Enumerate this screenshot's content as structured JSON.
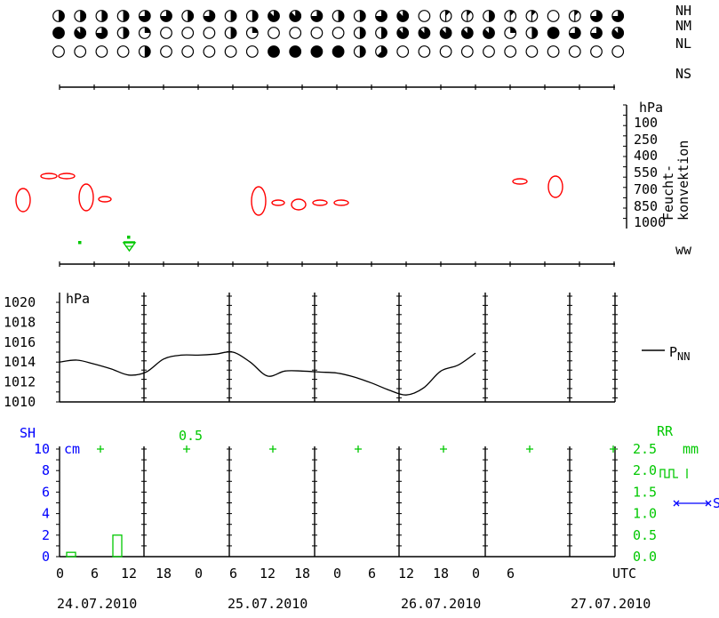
{
  "colors": {
    "black": "#000000",
    "convection": "#ff0000",
    "green": "#00c800",
    "blue": "#0000ff"
  },
  "clouds": {
    "labels": {
      "nh": "NH",
      "nm": "NM",
      "nl": "NL",
      "ns": "NS"
    },
    "rows": [
      [
        4,
        4,
        4,
        4,
        6,
        6,
        4,
        6,
        4,
        4,
        7,
        7,
        6,
        4,
        4,
        6,
        7,
        0,
        1,
        1,
        4,
        1,
        1,
        0,
        1,
        6,
        6
      ],
      [
        8,
        7,
        6,
        4,
        2,
        0,
        0,
        0,
        4,
        2,
        0,
        0,
        0,
        0,
        4,
        4,
        7,
        7,
        7,
        7,
        7,
        2,
        4,
        8,
        6,
        6,
        7
      ],
      [
        0,
        0,
        0,
        0,
        4,
        0,
        0,
        0,
        0,
        0,
        8,
        8,
        8,
        8,
        4,
        5,
        0,
        0,
        0,
        0,
        0,
        0,
        0,
        0,
        0,
        0,
        0
      ]
    ]
  },
  "convection": {
    "labels": {
      "unit": "hPa",
      "ticks": [
        "100",
        "250",
        "400",
        "550",
        "700",
        "850",
        "1000"
      ],
      "title_line1": "Feucht-",
      "title_line2": "konvektion"
    }
  },
  "weather": {
    "label": "ww"
  },
  "chart_data": [
    {
      "type": "line",
      "title": "",
      "ylabel": "hPa",
      "ylim": [
        1010,
        1020
      ],
      "y_ticks": [
        "1020",
        "1018",
        "1016",
        "1014",
        "1012",
        "1010"
      ],
      "grid": false,
      "series": [
        {
          "name": "PNN",
          "legend_main": "P",
          "legend_sub": "NN",
          "x": [
            0,
            3,
            6,
            9,
            12,
            15,
            18,
            21,
            24,
            27,
            30,
            33,
            36,
            39,
            42,
            45,
            48,
            51,
            54,
            57,
            60,
            63,
            66,
            69,
            72
          ],
          "values": [
            1014.0,
            1014.2,
            1013.8,
            1013.3,
            1012.7,
            1013.0,
            1014.3,
            1014.7,
            1014.7,
            1014.8,
            1015.0,
            1014.0,
            1012.6,
            1013.1,
            1013.1,
            1013.0,
            1012.9,
            1012.5,
            1011.9,
            1011.2,
            1010.7,
            1011.4,
            1013.1,
            1013.7,
            1014.9
          ]
        }
      ]
    },
    {
      "type": "bar",
      "title": "",
      "ylabel_left": "SH",
      "unit_left": "cm",
      "left_ticks": [
        "10",
        "8",
        "6",
        "4",
        "2",
        "0"
      ],
      "ylim_left": [
        0,
        10
      ],
      "ylabel_right": "RR",
      "unit_right": "mm",
      "right_ticks": [
        "2.5",
        "2.0",
        "1.5",
        "1.0",
        "0.5",
        "0.0"
      ],
      "ylim_right": [
        0,
        2.5
      ],
      "annotation": "0.5",
      "series": [
        {
          "name": "RR",
          "bars": [
            {
              "x": 2,
              "value": 0.1
            },
            {
              "x": 10,
              "value": 0.5
            }
          ]
        }
      ],
      "legend_rr_symbol": "┌┐┌┐ R",
      "legend_sh_symbol": "S"
    }
  ],
  "time_axis": {
    "hours": [
      "0",
      "6",
      "12",
      "18",
      "0",
      "6",
      "12",
      "18",
      "0",
      "6",
      "12",
      "18",
      "0",
      "6"
    ],
    "unit": "UTC",
    "dates": [
      "24.07.2010",
      "25.07.2010",
      "26.07.2010",
      "27.07.2010"
    ]
  }
}
